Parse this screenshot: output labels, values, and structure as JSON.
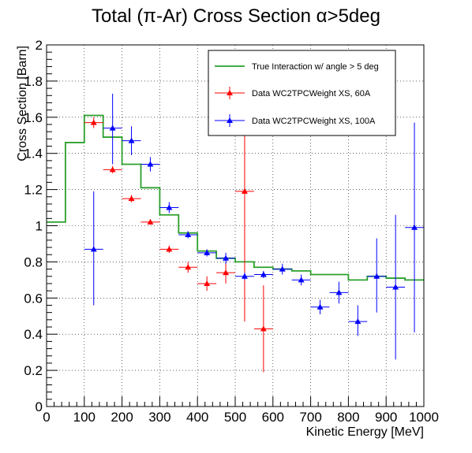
{
  "chart_data": {
    "type": "scatter",
    "title": "Total (π-Ar) Cross Section α>5deg",
    "xlabel": "Kinetic Energy [MeV]",
    "ylabel": "Cross Section [Barn]",
    "xlim": [
      0,
      1000
    ],
    "ylim": [
      0,
      2
    ],
    "xticks": [
      "0",
      "100",
      "200",
      "300",
      "400",
      "500",
      "600",
      "700",
      "800",
      "900",
      "1000"
    ],
    "yticks": [
      "0",
      "0.2",
      "0.4",
      "0.6",
      "0.8",
      "1",
      "1.2",
      "1.4",
      "1.6",
      "1.8",
      "2"
    ],
    "grid": true,
    "legend_position": "top-right",
    "series": [
      {
        "name": "True Interaction w/ angle > 5 deg",
        "kind": "step",
        "color": "#2ca02c",
        "bin_width": 50,
        "x": [
          0,
          50,
          100,
          150,
          200,
          250,
          300,
          350,
          400,
          450,
          500,
          550,
          600,
          650,
          700,
          750,
          800,
          850,
          900,
          950
        ],
        "y": [
          1.02,
          1.46,
          1.61,
          1.49,
          1.34,
          1.21,
          1.06,
          0.96,
          0.86,
          0.82,
          0.8,
          0.77,
          0.76,
          0.75,
          0.73,
          0.73,
          0.7,
          0.72,
          0.71,
          0.7
        ]
      },
      {
        "name": "Data WC2TPCWeight XS, 60A",
        "kind": "points",
        "color": "#ff0000",
        "x": [
          125,
          175,
          225,
          275,
          325,
          375,
          425,
          475,
          525,
          575
        ],
        "y": [
          1.57,
          1.31,
          1.15,
          1.02,
          0.87,
          0.77,
          0.68,
          0.74,
          1.19,
          0.43
        ],
        "err_up": [
          0.03,
          0.02,
          0.02,
          0.015,
          0.02,
          0.03,
          0.04,
          0.06,
          0.72,
          0.24
        ],
        "err_down": [
          0.03,
          0.02,
          0.02,
          0.015,
          0.02,
          0.03,
          0.04,
          0.06,
          0.72,
          0.24
        ],
        "x_half_width": 25
      },
      {
        "name": "Data WC2TPCWeight XS, 100A",
        "kind": "points",
        "color": "#0000ff",
        "x": [
          125,
          175,
          225,
          275,
          325,
          375,
          425,
          475,
          525,
          575,
          625,
          675,
          725,
          775,
          825,
          875,
          925,
          975
        ],
        "y": [
          0.87,
          1.54,
          1.47,
          1.34,
          1.1,
          0.95,
          0.85,
          0.82,
          0.72,
          0.73,
          0.76,
          0.7,
          0.55,
          0.63,
          0.47,
          0.72,
          0.66,
          0.99
        ],
        "err_up": [
          0.32,
          0.19,
          0.08,
          0.04,
          0.03,
          0.02,
          0.02,
          0.03,
          0.02,
          0.02,
          0.03,
          0.03,
          0.04,
          0.06,
          0.09,
          0.21,
          0.4,
          0.58
        ],
        "err_down": [
          0.31,
          0.2,
          0.08,
          0.04,
          0.03,
          0.02,
          0.02,
          0.03,
          0.02,
          0.02,
          0.03,
          0.03,
          0.04,
          0.06,
          0.08,
          0.2,
          0.4,
          0.58
        ],
        "x_half_width": 25
      }
    ]
  }
}
